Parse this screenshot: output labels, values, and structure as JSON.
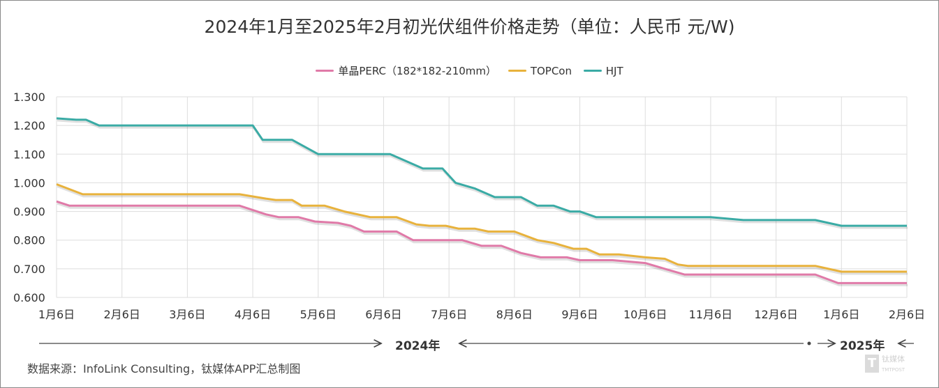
{
  "chart_data": {
    "type": "line",
    "title": "2024年1月至2025年2月初光伏组件价格走势（单位：人民币 元/W)",
    "xlabel": "",
    "ylabel": "",
    "x_tick_labels": [
      "1月6日",
      "2月6日",
      "3月6日",
      "4月6日",
      "5月6日",
      "6月6日",
      "7月6日",
      "8月6日",
      "9月6日",
      "10月6日",
      "11月6日",
      "12月6日",
      "1月6日",
      "2月6日"
    ],
    "y_tick_labels": [
      "1.300",
      "1.200",
      "1.100",
      "1.000",
      "0.900",
      "0.800",
      "0.700",
      "0.600"
    ],
    "ylim": [
      0.6,
      1.3
    ],
    "grid": true,
    "legend_position": "top-center",
    "x_units": "month index from 2024-01-06",
    "series": [
      {
        "name": "单晶PERC（182*182-210mm）",
        "color": "#e07aa8",
        "points": [
          [
            0,
            0.935
          ],
          [
            0.2,
            0.92
          ],
          [
            2.8,
            0.92
          ],
          [
            3.2,
            0.89
          ],
          [
            3.4,
            0.88
          ],
          [
            3.7,
            0.88
          ],
          [
            3.95,
            0.865
          ],
          [
            4.3,
            0.86
          ],
          [
            4.5,
            0.85
          ],
          [
            4.7,
            0.83
          ],
          [
            5.2,
            0.83
          ],
          [
            5.45,
            0.8
          ],
          [
            6.2,
            0.8
          ],
          [
            6.5,
            0.78
          ],
          [
            6.8,
            0.78
          ],
          [
            7.1,
            0.755
          ],
          [
            7.4,
            0.74
          ],
          [
            7.8,
            0.74
          ],
          [
            8.0,
            0.73
          ],
          [
            8.5,
            0.73
          ],
          [
            9.0,
            0.72
          ],
          [
            9.3,
            0.7
          ],
          [
            9.6,
            0.68
          ],
          [
            11.6,
            0.68
          ],
          [
            11.95,
            0.65
          ],
          [
            13,
            0.65
          ]
        ]
      },
      {
        "name": "TOPCon",
        "color": "#e8b23c",
        "points": [
          [
            0,
            0.995
          ],
          [
            0.4,
            0.96
          ],
          [
            2.8,
            0.96
          ],
          [
            3.2,
            0.945
          ],
          [
            3.35,
            0.94
          ],
          [
            3.6,
            0.94
          ],
          [
            3.75,
            0.92
          ],
          [
            4.1,
            0.92
          ],
          [
            4.4,
            0.9
          ],
          [
            4.8,
            0.88
          ],
          [
            5.2,
            0.88
          ],
          [
            5.5,
            0.855
          ],
          [
            5.7,
            0.85
          ],
          [
            5.95,
            0.85
          ],
          [
            6.15,
            0.84
          ],
          [
            6.4,
            0.84
          ],
          [
            6.6,
            0.83
          ],
          [
            7.0,
            0.83
          ],
          [
            7.35,
            0.8
          ],
          [
            7.6,
            0.79
          ],
          [
            7.9,
            0.77
          ],
          [
            8.1,
            0.77
          ],
          [
            8.3,
            0.75
          ],
          [
            8.6,
            0.75
          ],
          [
            9.0,
            0.74
          ],
          [
            9.3,
            0.735
          ],
          [
            9.5,
            0.715
          ],
          [
            9.65,
            0.71
          ],
          [
            11.6,
            0.71
          ],
          [
            12.0,
            0.69
          ],
          [
            13,
            0.69
          ]
        ]
      },
      {
        "name": "HJT",
        "color": "#3aaba5",
        "points": [
          [
            0,
            1.225
          ],
          [
            0.3,
            1.22
          ],
          [
            0.45,
            1.22
          ],
          [
            0.65,
            1.2
          ],
          [
            3.0,
            1.2
          ],
          [
            3.15,
            1.15
          ],
          [
            3.6,
            1.15
          ],
          [
            4.0,
            1.1
          ],
          [
            5.1,
            1.1
          ],
          [
            5.3,
            1.08
          ],
          [
            5.6,
            1.05
          ],
          [
            5.9,
            1.05
          ],
          [
            6.1,
            1.0
          ],
          [
            6.4,
            0.98
          ],
          [
            6.7,
            0.95
          ],
          [
            7.1,
            0.95
          ],
          [
            7.35,
            0.92
          ],
          [
            7.6,
            0.92
          ],
          [
            7.85,
            0.9
          ],
          [
            8.0,
            0.9
          ],
          [
            8.25,
            0.88
          ],
          [
            10.0,
            0.88
          ],
          [
            10.5,
            0.87
          ],
          [
            11.6,
            0.87
          ],
          [
            12.0,
            0.85
          ],
          [
            13,
            0.85
          ]
        ]
      }
    ]
  },
  "timeline": {
    "year1": "2024年",
    "year2": "2025年"
  },
  "source": "数据来源：InfoLink Consulting，钛媒体APP汇总制图",
  "watermark": {
    "name": "钛媒体",
    "sub": "TMTPOST"
  }
}
